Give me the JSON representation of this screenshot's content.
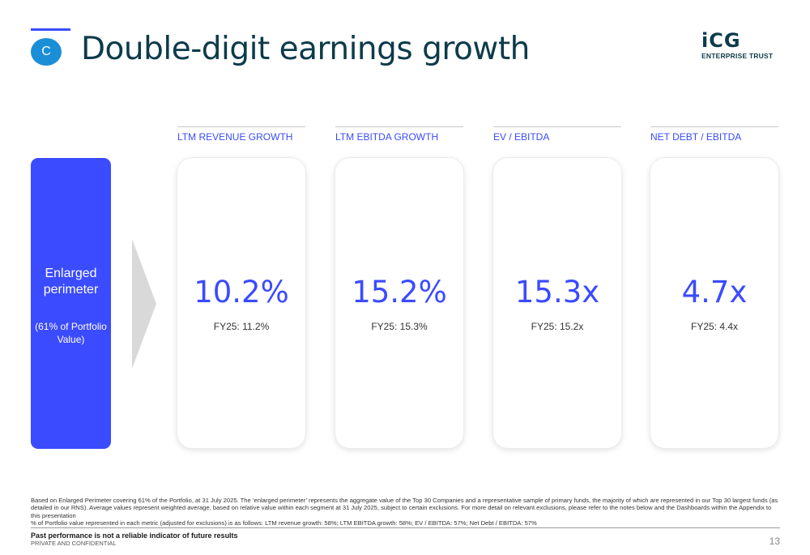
{
  "header": {
    "section_letter": "C",
    "title": "Double-digit earnings growth",
    "logo_mark": "iCG",
    "logo_sub": "ENTERPRISE TRUST"
  },
  "segment": {
    "title": "Enlarged perimeter",
    "subtitle": "(61% of Portfolio Value)"
  },
  "metrics": [
    {
      "header": "LTM REVENUE GROWTH",
      "value": "10.2%",
      "prior": "FY25: 11.2%"
    },
    {
      "header": "LTM EBITDA GROWTH",
      "value": "15.2%",
      "prior": "FY25: 15.3%"
    },
    {
      "header": "EV / EBITDA",
      "value": "15.3x",
      "prior": "FY25: 15.2x"
    },
    {
      "header": "NET DEBT / EBITDA",
      "value": "4.7x",
      "prior": "FY25: 4.4x"
    }
  ],
  "footnotes": {
    "line1": "Based on Enlarged Perimeter covering 61% of the Portfolio, at 31 July 2025. The ‘enlarged perimeter’ represents the aggregate value of the Top 30 Companies and a representative sample of primary funds, the majority of which are represented in our Top 30 largest funds (as detailed in our RNS). Average values represent weighted average, based on relative value within each segment at 31 July 2025, subject to certain exclusions. For more detail on relevant exclusions, please refer to the notes below and the Dashboards within the Appendix to this presentation",
    "line2": "% of Portfolio value represented in each metric (adjusted for exclusions) is as follows: LTM revenue growth: 58%; LTM EBITDA growth: 58%; EV / EBITDA: 57%; Net Debt / EBITDA: 57%"
  },
  "footer": {
    "disclaimer": "Past performance is not a reliable indicator of future results",
    "classification": "PRIVATE AND CONFIDENTIAL",
    "page_number": "13"
  },
  "colors": {
    "accent": "#3b4bff",
    "title": "#0d3b4a",
    "badge": "#1a8fd8"
  }
}
